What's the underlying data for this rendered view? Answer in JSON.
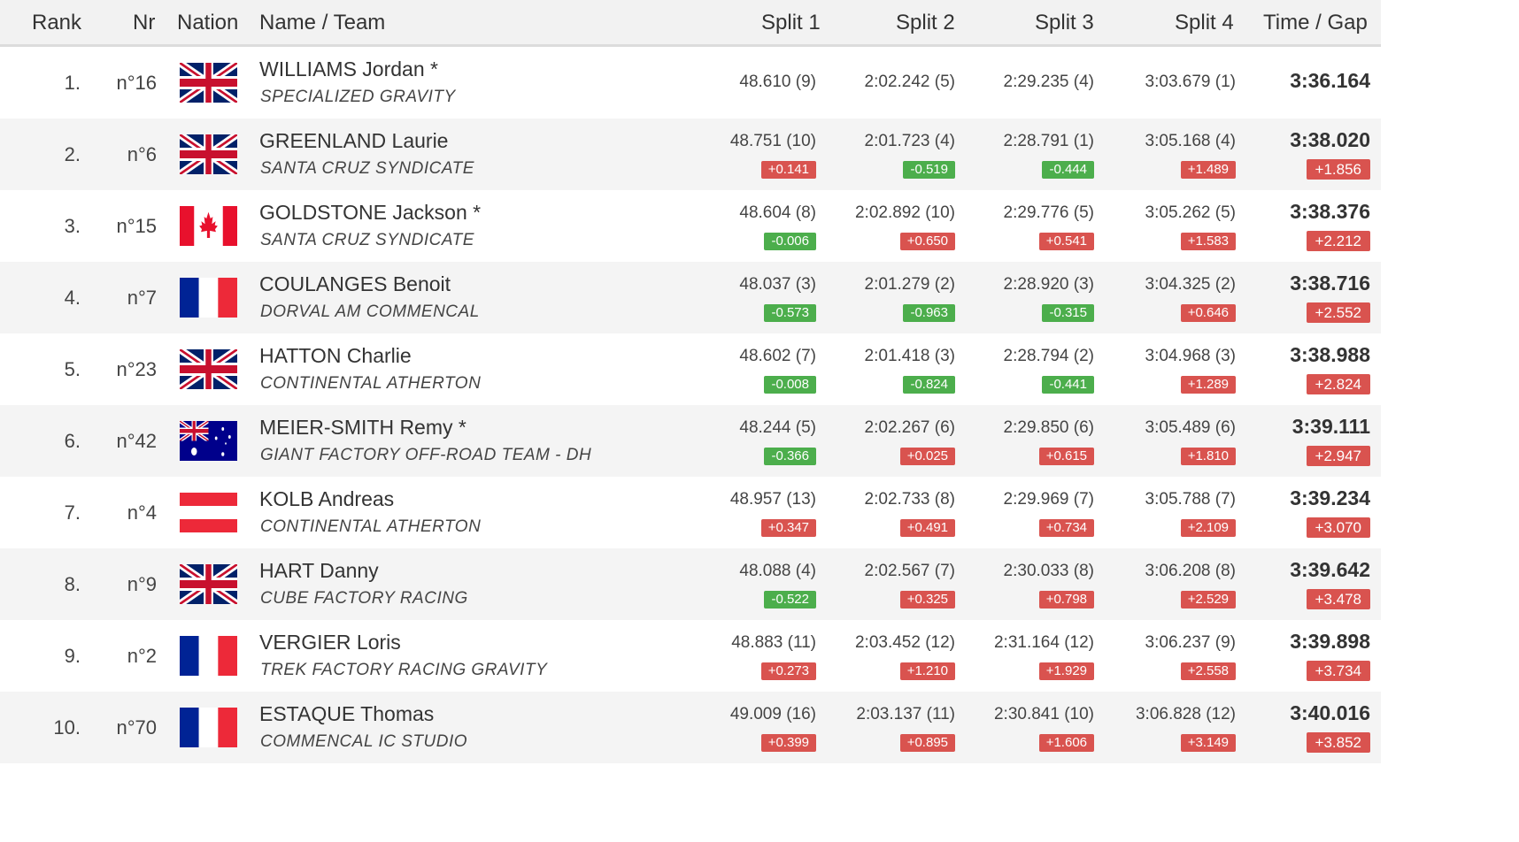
{
  "header": {
    "rank": "Rank",
    "nr": "Nr",
    "nation": "Nation",
    "name_team": "Name / Team",
    "split1": "Split 1",
    "split2": "Split 2",
    "split3": "Split 3",
    "split4": "Split 4",
    "time_gap": "Time / Gap"
  },
  "colors": {
    "delta_positive": "#d9534f",
    "delta_negative": "#4cae4c",
    "row_alt": "#f4f4f4"
  },
  "rows": [
    {
      "rank": "1.",
      "nr": "n°16",
      "flag": "gb-flag",
      "name": "WILLIAMS Jordan *",
      "team": "SPECIALIZED GRAVITY",
      "splits": [
        {
          "value": "48.610 (9)",
          "delta": ""
        },
        {
          "value": "2:02.242 (5)",
          "delta": ""
        },
        {
          "value": "2:29.235 (4)",
          "delta": ""
        },
        {
          "value": "3:03.679 (1)",
          "delta": ""
        }
      ],
      "time": "3:36.164",
      "gap": ""
    },
    {
      "rank": "2.",
      "nr": "n°6",
      "flag": "gb-flag",
      "name": "GREENLAND Laurie",
      "team": "SANTA CRUZ SYNDICATE",
      "splits": [
        {
          "value": "48.751 (10)",
          "delta": "+0.141"
        },
        {
          "value": "2:01.723 (4)",
          "delta": "-0.519"
        },
        {
          "value": "2:28.791 (1)",
          "delta": "-0.444"
        },
        {
          "value": "3:05.168 (4)",
          "delta": "+1.489"
        }
      ],
      "time": "3:38.020",
      "gap": "+1.856"
    },
    {
      "rank": "3.",
      "nr": "n°15",
      "flag": "ca-flag",
      "name": "GOLDSTONE Jackson *",
      "team": "SANTA CRUZ SYNDICATE",
      "splits": [
        {
          "value": "48.604 (8)",
          "delta": "-0.006"
        },
        {
          "value": "2:02.892 (10)",
          "delta": "+0.650"
        },
        {
          "value": "2:29.776 (5)",
          "delta": "+0.541"
        },
        {
          "value": "3:05.262 (5)",
          "delta": "+1.583"
        }
      ],
      "time": "3:38.376",
      "gap": "+2.212"
    },
    {
      "rank": "4.",
      "nr": "n°7",
      "flag": "fr-flag",
      "name": "COULANGES Benoit",
      "team": "DORVAL AM COMMENCAL",
      "splits": [
        {
          "value": "48.037 (3)",
          "delta": "-0.573"
        },
        {
          "value": "2:01.279 (2)",
          "delta": "-0.963"
        },
        {
          "value": "2:28.920 (3)",
          "delta": "-0.315"
        },
        {
          "value": "3:04.325 (2)",
          "delta": "+0.646"
        }
      ],
      "time": "3:38.716",
      "gap": "+2.552"
    },
    {
      "rank": "5.",
      "nr": "n°23",
      "flag": "gb-flag",
      "name": "HATTON Charlie",
      "team": "CONTINENTAL ATHERTON",
      "splits": [
        {
          "value": "48.602 (7)",
          "delta": "-0.008"
        },
        {
          "value": "2:01.418 (3)",
          "delta": "-0.824"
        },
        {
          "value": "2:28.794 (2)",
          "delta": "-0.441"
        },
        {
          "value": "3:04.968 (3)",
          "delta": "+1.289"
        }
      ],
      "time": "3:38.988",
      "gap": "+2.824"
    },
    {
      "rank": "6.",
      "nr": "n°42",
      "flag": "au-flag",
      "name": "MEIER-SMITH Remy *",
      "team": "GIANT FACTORY OFF-ROAD TEAM - DH",
      "splits": [
        {
          "value": "48.244 (5)",
          "delta": "-0.366"
        },
        {
          "value": "2:02.267 (6)",
          "delta": "+0.025"
        },
        {
          "value": "2:29.850 (6)",
          "delta": "+0.615"
        },
        {
          "value": "3:05.489 (6)",
          "delta": "+1.810"
        }
      ],
      "time": "3:39.111",
      "gap": "+2.947"
    },
    {
      "rank": "7.",
      "nr": "n°4",
      "flag": "at-flag",
      "name": "KOLB Andreas",
      "team": "CONTINENTAL ATHERTON",
      "splits": [
        {
          "value": "48.957 (13)",
          "delta": "+0.347"
        },
        {
          "value": "2:02.733 (8)",
          "delta": "+0.491"
        },
        {
          "value": "2:29.969 (7)",
          "delta": "+0.734"
        },
        {
          "value": "3:05.788 (7)",
          "delta": "+2.109"
        }
      ],
      "time": "3:39.234",
      "gap": "+3.070"
    },
    {
      "rank": "8.",
      "nr": "n°9",
      "flag": "gb-flag",
      "name": "HART Danny",
      "team": "CUBE FACTORY RACING",
      "splits": [
        {
          "value": "48.088 (4)",
          "delta": "-0.522"
        },
        {
          "value": "2:02.567 (7)",
          "delta": "+0.325"
        },
        {
          "value": "2:30.033 (8)",
          "delta": "+0.798"
        },
        {
          "value": "3:06.208 (8)",
          "delta": "+2.529"
        }
      ],
      "time": "3:39.642",
      "gap": "+3.478"
    },
    {
      "rank": "9.",
      "nr": "n°2",
      "flag": "fr-flag",
      "name": "VERGIER Loris",
      "team": "TREK FACTORY RACING GRAVITY",
      "splits": [
        {
          "value": "48.883 (11)",
          "delta": "+0.273"
        },
        {
          "value": "2:03.452 (12)",
          "delta": "+1.210"
        },
        {
          "value": "2:31.164 (12)",
          "delta": "+1.929"
        },
        {
          "value": "3:06.237 (9)",
          "delta": "+2.558"
        }
      ],
      "time": "3:39.898",
      "gap": "+3.734"
    },
    {
      "rank": "10.",
      "nr": "n°70",
      "flag": "fr-flag",
      "name": "ESTAQUE Thomas",
      "team": "COMMENCAL IC STUDIO",
      "splits": [
        {
          "value": "49.009 (16)",
          "delta": "+0.399"
        },
        {
          "value": "2:03.137 (11)",
          "delta": "+0.895"
        },
        {
          "value": "2:30.841 (10)",
          "delta": "+1.606"
        },
        {
          "value": "3:06.828 (12)",
          "delta": "+3.149"
        }
      ],
      "time": "3:40.016",
      "gap": "+3.852"
    }
  ]
}
